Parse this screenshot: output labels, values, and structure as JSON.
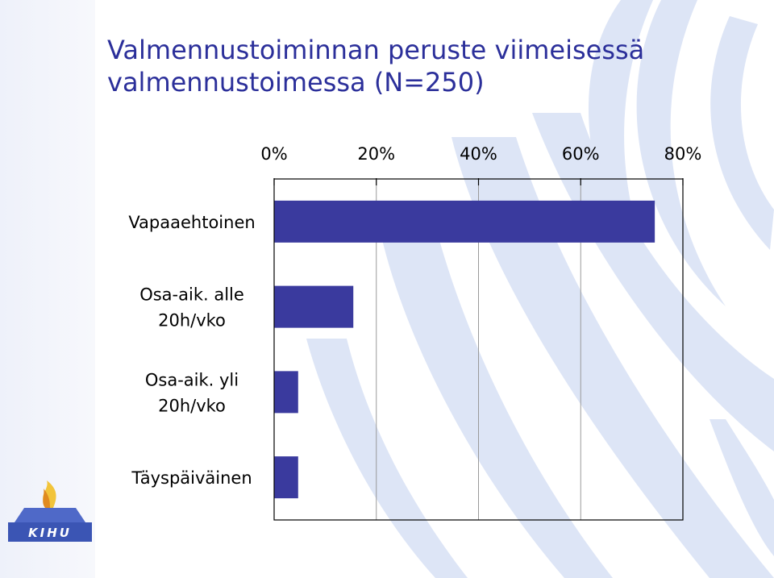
{
  "slide": {
    "title_lines": [
      "Valmennustoiminnan peruste viimeisessä",
      "valmennustoimessa (N=250)"
    ],
    "logo_text": "KIHU",
    "colors": {
      "title": "#2b2f9a",
      "bar": "#3a3a9e",
      "swoosh": "#dde5f6",
      "logo": "#3b55b4"
    },
    "icons": [
      "kihu-logo-icon",
      "swoosh-decoration"
    ]
  },
  "chart_data": {
    "type": "bar",
    "orientation": "horizontal",
    "categories": [
      "Vapaaehtoinen",
      "Osa-aik. alle 20h/vko",
      "Osa-aik. yli 20h/vko",
      "Täyspäiväinen"
    ],
    "category_label_lines": [
      [
        "Vapaaehtoinen"
      ],
      [
        "Osa-aik. alle",
        "20h/vko"
      ],
      [
        "Osa-aik. yli",
        "20h/vko"
      ],
      [
        "Täyspäiväinen"
      ]
    ],
    "values": [
      74.5,
      15.5,
      4.7,
      4.7
    ],
    "value_unit": "%",
    "xlim": [
      0,
      80
    ],
    "x_ticks": [
      0,
      20,
      40,
      60,
      80
    ],
    "x_tick_labels": [
      "0%",
      "20%",
      "40%",
      "60%",
      "80%"
    ],
    "x_axis_position": "top",
    "grid": true,
    "legend": "none",
    "title": "Valmennustoiminnan peruste viimeisessä valmennustoimessa (N=250)",
    "xlabel": "",
    "ylabel": ""
  }
}
